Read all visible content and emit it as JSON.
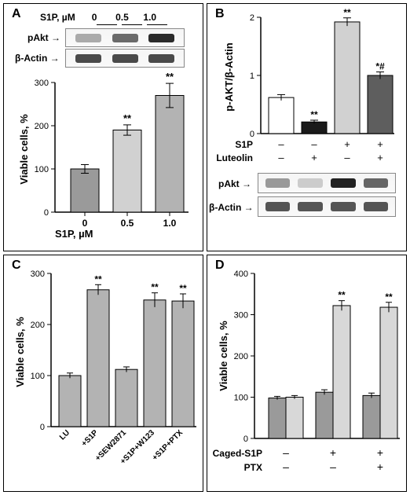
{
  "panelLabels": {
    "A": "A",
    "B": "B",
    "C": "C",
    "D": "D"
  },
  "colors": {
    "bar_gray": "#b3b3b3",
    "bar_lightgray": "#d1d1d1",
    "bar_white": "#ffffff",
    "bar_black": "#1a1a1a",
    "bar_darkgray": "#5e5e5e",
    "axis": "#000000",
    "errbar": "#000000",
    "panel_border": "#000000",
    "blot_dark": "#3a3a3a",
    "blot_med": "#6a6a6a",
    "blot_light": "#9a9a9a",
    "bg": "#ffffff"
  },
  "A": {
    "header": {
      "label": "S1P, µM",
      "doses": [
        "0",
        "0.5",
        "1.0"
      ]
    },
    "blots": {
      "pAkt_label": "pAkt",
      "actin_label": "β-Actin",
      "pAkt_intensity": [
        0.25,
        0.5,
        0.95
      ],
      "actin_intensity": [
        0.85,
        0.85,
        0.85
      ],
      "arrow": "→"
    },
    "chart": {
      "type": "bar",
      "ylabel": "Viable cells, %",
      "ylim": [
        0,
        300
      ],
      "yticks": [
        0,
        100,
        200,
        300
      ],
      "xlabel": "S1P, µM",
      "xticks": [
        "0",
        "0.5",
        "1.0"
      ],
      "values": [
        100,
        190,
        270
      ],
      "errors": [
        10,
        12,
        28
      ],
      "bar_colors": [
        "#9a9a9a",
        "#d1d1d1",
        "#b3b3b3"
      ],
      "sig": [
        "",
        "**",
        "**"
      ]
    }
  },
  "B": {
    "chart": {
      "type": "bar",
      "ylabel": "p-AKT/β-Actin",
      "ylim": [
        0,
        2
      ],
      "yticks": [
        0,
        1,
        2
      ],
      "conditions": {
        "labels": [
          "S1P",
          "Luteolin"
        ],
        "matrix": [
          [
            "–",
            "–",
            "+",
            "+"
          ],
          [
            "–",
            "+",
            "–",
            "+"
          ]
        ]
      },
      "values": [
        0.62,
        0.2,
        1.92,
        1.0
      ],
      "errors": [
        0.05,
        0.03,
        0.07,
        0.06
      ],
      "bar_colors": [
        "#ffffff",
        "#1a1a1a",
        "#d1d1d1",
        "#5e5e5e"
      ],
      "sig": [
        "",
        "**",
        "**",
        "*#"
      ]
    },
    "blots": {
      "pAkt_label": "pAkt",
      "actin_label": "β-Actin",
      "arrow": "→",
      "pAkt_intensity": [
        0.35,
        0.1,
        0.95,
        0.55
      ],
      "actin_intensity": [
        0.85,
        0.85,
        0.85,
        0.85
      ]
    }
  },
  "C": {
    "chart": {
      "type": "bar",
      "ylabel": "Viable cells, %",
      "ylim": [
        0,
        300
      ],
      "yticks": [
        0,
        100,
        200,
        300
      ],
      "xlabels": [
        "LU",
        "+S1P",
        "+SEW2871",
        "+S1P+W123",
        "+S1P+PTX"
      ],
      "values": [
        100,
        268,
        112,
        248,
        246
      ],
      "errors": [
        5,
        10,
        5,
        14,
        14
      ],
      "bar_color": "#b3b3b3",
      "sig": [
        "",
        "**",
        "",
        "**",
        "**"
      ]
    }
  },
  "D": {
    "chart": {
      "type": "grouped-bar",
      "ylabel": "Viable cells, %",
      "ylim": [
        0,
        400
      ],
      "yticks": [
        0,
        100,
        200,
        300,
        400
      ],
      "conditions": {
        "labels": [
          "Caged-S1P",
          "PTX"
        ],
        "matrix": [
          [
            "–",
            "–",
            "+",
            "+",
            "+",
            "+"
          ],
          [
            "–",
            "–",
            "–",
            "–",
            "+",
            "+"
          ]
        ]
      },
      "groups": [
        {
          "values": [
            98,
            100
          ],
          "errors": [
            4,
            4
          ],
          "colors": [
            "#9a9a9a",
            "#d8d8d8"
          ]
        },
        {
          "values": [
            112,
            322
          ],
          "errors": [
            6,
            12
          ],
          "colors": [
            "#9a9a9a",
            "#d8d8d8"
          ],
          "sig": [
            "",
            "**"
          ]
        },
        {
          "values": [
            104,
            318
          ],
          "errors": [
            6,
            12
          ],
          "colors": [
            "#9a9a9a",
            "#d8d8d8"
          ],
          "sig": [
            "",
            "**"
          ]
        }
      ]
    }
  }
}
